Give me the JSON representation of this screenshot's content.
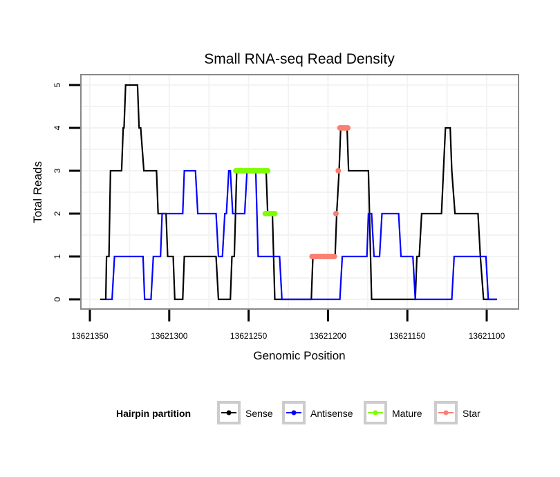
{
  "chart_data": {
    "type": "line",
    "title": "Small RNA-seq Read Density",
    "xlabel": "Genomic Position",
    "ylabel": "Total Reads",
    "x_reversed": true,
    "xlim": [
      13621362,
      13621087
    ],
    "ylim": [
      -0.2,
      5.25
    ],
    "x_ticks": [
      13621350,
      13621300,
      13621250,
      13621200,
      13621150,
      13621100
    ],
    "x_tick_labels": [
      "13621350",
      "13621300",
      "13621250",
      "13621200",
      "13621150",
      "13621100"
    ],
    "y_ticks": [
      0,
      1,
      2,
      3,
      4,
      5
    ],
    "y_tick_labels": [
      "0",
      "1",
      "2",
      "3",
      "4",
      "5"
    ],
    "grid": true,
    "legend": {
      "title": "Hairpin partition",
      "placement": "bottom",
      "entries": [
        {
          "name": "Sense",
          "color": "#000000"
        },
        {
          "name": "Antisense",
          "color": "#0000ff"
        },
        {
          "name": "Mature",
          "color": "#7fff00"
        },
        {
          "name": "Star",
          "color": "#fa8072"
        }
      ]
    },
    "series": [
      {
        "name": "Sense",
        "color": "#000000",
        "style": "line",
        "points": [
          [
            13621343.5,
            0
          ],
          [
            13621340,
            0
          ],
          [
            13621339.5,
            1
          ],
          [
            13621338,
            1
          ],
          [
            13621337,
            3
          ],
          [
            13621330,
            3
          ],
          [
            13621329,
            4
          ],
          [
            13621328.5,
            4
          ],
          [
            13621327.5,
            5
          ],
          [
            13621320,
            5
          ],
          [
            13621319,
            4
          ],
          [
            13621318,
            4
          ],
          [
            13621316,
            3
          ],
          [
            13621308,
            3
          ],
          [
            13621307,
            2
          ],
          [
            13621302,
            2
          ],
          [
            13621301,
            1
          ],
          [
            13621297.5,
            1
          ],
          [
            13621296.5,
            0
          ],
          [
            13621291.5,
            0
          ],
          [
            13621290.5,
            1
          ],
          [
            13621270.5,
            1
          ],
          [
            13621269,
            0
          ],
          [
            13621261.5,
            0
          ],
          [
            13621260.5,
            1
          ],
          [
            13621259,
            1
          ],
          [
            13621257.5,
            3
          ],
          [
            13621239,
            3
          ],
          [
            13621238,
            2
          ],
          [
            13621235,
            2
          ],
          [
            13621233.5,
            0
          ],
          [
            13621210.5,
            0
          ],
          [
            13621209.5,
            1
          ],
          [
            13621195.5,
            1
          ],
          [
            13621194.5,
            2
          ],
          [
            13621193,
            3
          ],
          [
            13621192,
            4
          ],
          [
            13621188,
            4
          ],
          [
            13621187,
            3
          ],
          [
            13621174.5,
            3
          ],
          [
            13621172.5,
            0
          ],
          [
            13621145,
            0
          ],
          [
            13621144,
            1
          ],
          [
            13621142.5,
            1
          ],
          [
            13621141,
            2
          ],
          [
            13621128.5,
            2
          ],
          [
            13621126,
            4
          ],
          [
            13621123,
            4
          ],
          [
            13621122,
            3
          ],
          [
            13621120,
            2
          ],
          [
            13621105.5,
            2
          ],
          [
            13621104,
            1
          ],
          [
            13621102,
            0
          ],
          [
            13621093.5,
            0
          ]
        ]
      },
      {
        "name": "Antisense",
        "color": "#0000ff",
        "style": "line",
        "points": [
          [
            13621340,
            0
          ],
          [
            13621336,
            0
          ],
          [
            13621334.5,
            1
          ],
          [
            13621316.5,
            1
          ],
          [
            13621315.5,
            0
          ],
          [
            13621311.5,
            0
          ],
          [
            13621310,
            1
          ],
          [
            13621305.5,
            1
          ],
          [
            13621304.5,
            2
          ],
          [
            13621291.5,
            2
          ],
          [
            13621290.5,
            3
          ],
          [
            13621283.5,
            3
          ],
          [
            13621282,
            2
          ],
          [
            13621270.5,
            2
          ],
          [
            13621269,
            1
          ],
          [
            13621266.5,
            1
          ],
          [
            13621265,
            2
          ],
          [
            13621264,
            2
          ],
          [
            13621262.5,
            3
          ],
          [
            13621261.5,
            3
          ],
          [
            13621260,
            2
          ],
          [
            13621252.5,
            2
          ],
          [
            13621251,
            3
          ],
          [
            13621245.5,
            3
          ],
          [
            13621244,
            1
          ],
          [
            13621230.5,
            1
          ],
          [
            13621229,
            0
          ],
          [
            13621192.5,
            0
          ],
          [
            13621191,
            1
          ],
          [
            13621175.5,
            1
          ],
          [
            13621174.5,
            2
          ],
          [
            13621172.5,
            2
          ],
          [
            13621171,
            1
          ],
          [
            13621167.5,
            1
          ],
          [
            13621166,
            2
          ],
          [
            13621155.5,
            2
          ],
          [
            13621154,
            1
          ],
          [
            13621146.5,
            1
          ],
          [
            13621145,
            0
          ],
          [
            13621122,
            0
          ],
          [
            13621120.5,
            1
          ],
          [
            13621100.5,
            1
          ],
          [
            13621099,
            0
          ],
          [
            13621093.5,
            0
          ]
        ]
      },
      {
        "name": "Mature",
        "color": "#7fff00",
        "style": "points",
        "points": [
          [
            13621258,
            3
          ],
          [
            13621257,
            3
          ],
          [
            13621256,
            3
          ],
          [
            13621255,
            3
          ],
          [
            13621254,
            3
          ],
          [
            13621253,
            3
          ],
          [
            13621252,
            3
          ],
          [
            13621251,
            3
          ],
          [
            13621250,
            3
          ],
          [
            13621249,
            3
          ],
          [
            13621248,
            3
          ],
          [
            13621247,
            3
          ],
          [
            13621246,
            3
          ],
          [
            13621245,
            3
          ],
          [
            13621244,
            3
          ],
          [
            13621243,
            3
          ],
          [
            13621242,
            3
          ],
          [
            13621241,
            3
          ],
          [
            13621240,
            3
          ],
          [
            13621239,
            3
          ],
          [
            13621238,
            3
          ],
          [
            13621239.5,
            2
          ],
          [
            13621238.5,
            2
          ],
          [
            13621237.5,
            2
          ],
          [
            13621236.5,
            2
          ],
          [
            13621235.5,
            2
          ],
          [
            13621234.5,
            2
          ],
          [
            13621233.5,
            2
          ]
        ]
      },
      {
        "name": "Star",
        "color": "#fa8072",
        "style": "points",
        "points": [
          [
            13621210,
            1
          ],
          [
            13621209,
            1
          ],
          [
            13621208,
            1
          ],
          [
            13621207,
            1
          ],
          [
            13621206,
            1
          ],
          [
            13621205,
            1
          ],
          [
            13621204,
            1
          ],
          [
            13621203,
            1
          ],
          [
            13621202,
            1
          ],
          [
            13621201,
            1
          ],
          [
            13621200,
            1
          ],
          [
            13621199,
            1
          ],
          [
            13621198,
            1
          ],
          [
            13621197,
            1
          ],
          [
            13621196,
            1
          ],
          [
            13621195,
            2
          ],
          [
            13621193.5,
            3
          ],
          [
            13621192.5,
            4
          ],
          [
            13621191.5,
            4
          ],
          [
            13621190.5,
            4
          ],
          [
            13621189.5,
            4
          ],
          [
            13621188.5,
            4
          ],
          [
            13621187.5,
            4
          ]
        ]
      }
    ]
  }
}
